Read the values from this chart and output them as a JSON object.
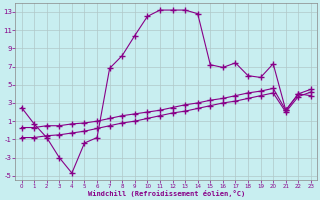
{
  "xlabel": "Windchill (Refroidissement éolien,°C)",
  "bg_color": "#c8eef0",
  "line_color": "#880088",
  "grid_color": "#b0c8c8",
  "xlim": [
    -0.5,
    23.5
  ],
  "ylim": [
    -5.5,
    14.0
  ],
  "xticks": [
    0,
    1,
    2,
    3,
    4,
    5,
    6,
    7,
    8,
    9,
    10,
    11,
    12,
    13,
    14,
    15,
    16,
    17,
    18,
    19,
    20,
    21,
    22,
    23
  ],
  "yticks": [
    -5,
    -3,
    -1,
    1,
    3,
    5,
    7,
    9,
    11,
    13
  ],
  "line1_x": [
    0,
    1,
    2,
    3,
    4,
    5,
    6,
    7,
    8,
    9,
    10,
    11,
    12,
    13,
    14,
    15,
    16,
    17,
    18,
    19,
    20,
    21,
    22,
    23
  ],
  "line1_y": [
    2.5,
    0.7,
    -0.8,
    -3.0,
    -4.7,
    -1.4,
    -0.8,
    6.8,
    8.2,
    10.4,
    12.5,
    13.2,
    13.2,
    13.2,
    12.8,
    7.2,
    6.9,
    7.4,
    6.0,
    5.8,
    7.3,
    2.2,
    4.0,
    3.8
  ],
  "line2_x": [
    0,
    1,
    2,
    3,
    4,
    5,
    6,
    7,
    8,
    9,
    10,
    11,
    12,
    13,
    14,
    15,
    16,
    17,
    18,
    19,
    20,
    21,
    22,
    23
  ],
  "line2_y": [
    0.3,
    0.3,
    0.5,
    0.5,
    0.7,
    0.8,
    1.0,
    1.3,
    1.6,
    1.8,
    2.0,
    2.2,
    2.5,
    2.8,
    3.0,
    3.3,
    3.5,
    3.8,
    4.1,
    4.3,
    4.6,
    2.2,
    4.0,
    4.5
  ],
  "line3_x": [
    0,
    1,
    2,
    3,
    4,
    5,
    6,
    7,
    8,
    9,
    10,
    11,
    12,
    13,
    14,
    15,
    16,
    17,
    18,
    19,
    20,
    21,
    22,
    23
  ],
  "line3_y": [
    -0.8,
    -0.8,
    -0.6,
    -0.5,
    -0.3,
    -0.1,
    0.2,
    0.5,
    0.8,
    1.0,
    1.3,
    1.6,
    1.9,
    2.1,
    2.4,
    2.7,
    3.0,
    3.2,
    3.5,
    3.8,
    4.1,
    2.0,
    3.7,
    4.2
  ]
}
